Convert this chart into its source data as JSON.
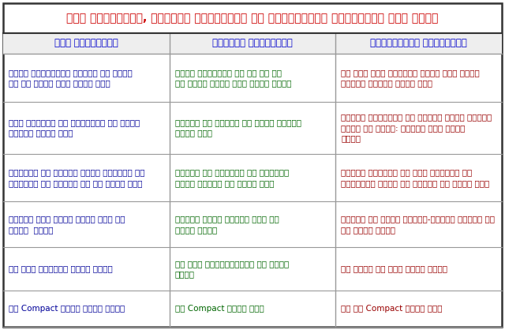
{
  "title": "सरल गियरमाला, संयोजी गियरमाला और अधिचक्रीय गियरमाला में अंतर",
  "title_color": "#cc0000",
  "title_bg": "#ffffff",
  "header_bg": "#eeeeee",
  "header_text_color": "#0000cc",
  "cell_bg": "#ffffff",
  "border_color": "#999999",
  "outer_border_color": "#333333",
  "col0_color": "#000099",
  "col1_color": "#006600",
  "col2_color": "#990000",
  "headers": [
    "सरल गियरमाला",
    "संयोजी गियरमाला",
    "अधिचक्रीय गियरमाला"
  ],
  "rows": [
    [
      "इसकी प्रत्येक शाफ्ट पर केवल\nएक ही गियर लगा होता है।",
      "इसकी शाफ्टों पर एक या एक\nसे अधिक गियर लगे होते हैं।",
      "यह सरल एवं संयोजी गियर में भुजा\nलगाकर बनायी जाती है।"
    ],
    [
      "सभी गियरों की शाफ्टों की अक्ष\nस्थिर रहती है।",
      "इसमें भी शाफ्ट की अक्ष स्थिर\nरहती है।",
      "इसमें शाफ्टों की अर्को किसी स्थिर\nअक्ष के परित: चक्रण गति करती\nहैं।"
    ],
    [
      "गियरों की घुमाव दिशा गियरों को\nघुमाकर ही ज्ञात की जा सकती है।",
      "इसमें भी गियरों को घुमाकर\nदिशा ज्ञात की जाती है।",
      "इसमें गियरों की गति तालिका से\nप्राप्त समी० से ज्ञात की जाती है।"
    ],
    [
      "इसमें सभी गियर समान पिच के\nहोते  हैं।",
      "इसमें गियर असमान पिच के\nहोते हैं।",
      "इसमें भी गियर भिन्न-भिन्न पिचों के\nहो सकते हैं।"
    ],
    [
      "यह जगह ज्यादा लेती हैं।",
      "यह जगह अपेक्षाकृत कम लेती\nहैं।",
      "यह सबसे कम जगह लेती हैं।"
    ],
    [
      "यह Compact नहीं होती हैं।",
      "यह Compact होता है।",
      "यह भी Compact होता है।"
    ]
  ],
  "fig_width": 6.4,
  "fig_height": 4.18,
  "dpi": 100
}
